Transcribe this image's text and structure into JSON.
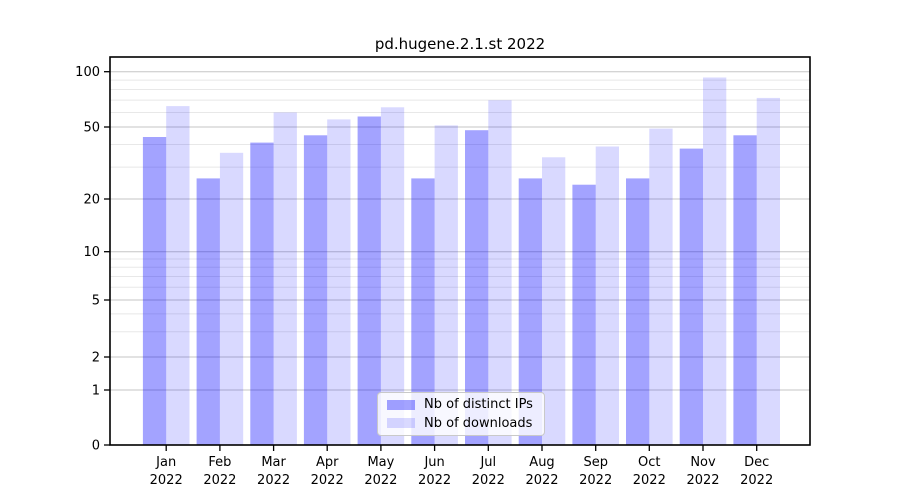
{
  "chart_data": {
    "type": "bar",
    "title": "pd.hugene.2.1.st 2022",
    "categories": [
      "Jan",
      "Feb",
      "Mar",
      "Apr",
      "May",
      "Jun",
      "Jul",
      "Aug",
      "Sep",
      "Oct",
      "Nov",
      "Dec"
    ],
    "year_label": "2022",
    "series": [
      {
        "name": "Nb of distinct IPs",
        "values": [
          44,
          26,
          41,
          45,
          57,
          26,
          48,
          26,
          24,
          26,
          38,
          45
        ],
        "color": "rgba(0,0,255,0.36)"
      },
      {
        "name": "Nb of downloads",
        "values": [
          65,
          36,
          60,
          55,
          64,
          51,
          70,
          34,
          39,
          49,
          93,
          72
        ],
        "color": "rgba(0,0,255,0.15)"
      }
    ],
    "yticks": [
      0,
      1,
      2,
      5,
      10,
      20,
      50,
      100
    ],
    "yscale": "log-like (0,1,2,5,10,20,50,100)",
    "ylim": [
      0,
      120
    ],
    "grid": true,
    "legend_position": "lower center",
    "xlabel": "",
    "ylabel": ""
  },
  "legend": {
    "items": [
      {
        "label": "Nb of distinct IPs"
      },
      {
        "label": "Nb of downloads"
      }
    ]
  },
  "colors": {
    "bar_ips": "rgba(0,0,255,0.36)",
    "bar_downloads": "rgba(0,0,255,0.15)",
    "grid_major": "#c6c6c6",
    "grid_minor": "#e8e8e8",
    "axis": "#000000",
    "background": "#ffffff"
  }
}
